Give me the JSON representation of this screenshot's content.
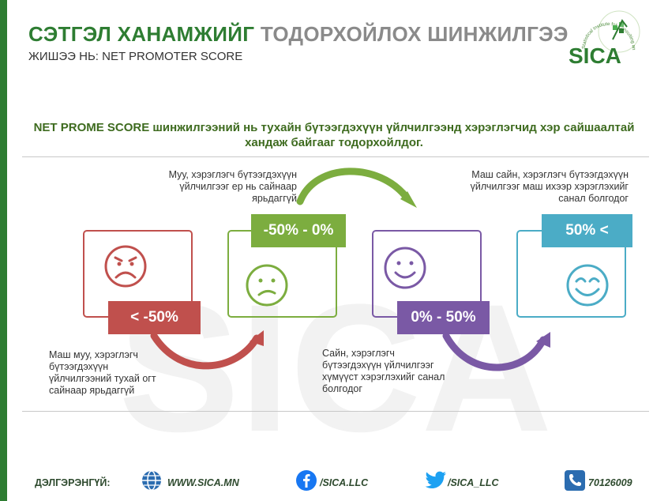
{
  "header": {
    "title_part1": "СЭТГЭЛ ХАНАМЖИЙГ",
    "title_part2": "ТОДОРХОЙЛОХ ШИНЖИЛГЭЭ",
    "subtitle": "ЖИШЭЭ НЬ: NET PROMOTER SCORE",
    "logo_text": "SICA",
    "logo_ring_text": "Statistical Institute for Consulting and Analysis"
  },
  "intro": "NET PROME SCORE шинжилгээний нь тухайн бүтээгдэхүүн үйлчилгээнд хэрэглэгчид хэр сайшаалтай хандаж байгааг тодорхойлдог.",
  "watermark_text": "SICA",
  "levels": [
    {
      "badge": "< -50%",
      "note_lines": [
        "Маш муу, хэрэглэгч",
        "бүтээгдэхүүн",
        "үйлчилгээний тухай огт",
        "сайнаар ярьдаггүй"
      ],
      "color": "#c0504d",
      "face": "very-sad"
    },
    {
      "badge": "-50% - 0%",
      "note_lines": [
        "Муу, хэрэглэгч бүтээгдэхүүн",
        "үйлчилгээг ер нь сайнаар",
        "ярьдаггүй"
      ],
      "color": "#7cad3f",
      "face": "sad"
    },
    {
      "badge": "0% - 50%",
      "note_lines": [
        "Сайн, хэрэглэгч",
        "бүтээгдэхүүн үйлчилгээг",
        "хүмүүст хэрэглэхийг санал",
        "болгодог"
      ],
      "color": "#7a59a5",
      "face": "happy"
    },
    {
      "badge": "50% <",
      "note_lines": [
        "Маш сайн, хэрэглэгч бүтээгдэхүүн",
        "үйлчилгээг маш ихээр хэрэглэхийг",
        "санал болгодог"
      ],
      "color": "#4bacc6",
      "face": "very-happy"
    }
  ],
  "footer": {
    "label": "ДЭЛГЭРЭНГҮЙ:",
    "website": "WWW.SICA.MN",
    "facebook": "/SICA.LLC",
    "twitter": "/SICA_LLC",
    "phone": "70126009",
    "icons": [
      "globe-icon",
      "facebook-icon",
      "twitter-icon",
      "phone-icon"
    ]
  }
}
